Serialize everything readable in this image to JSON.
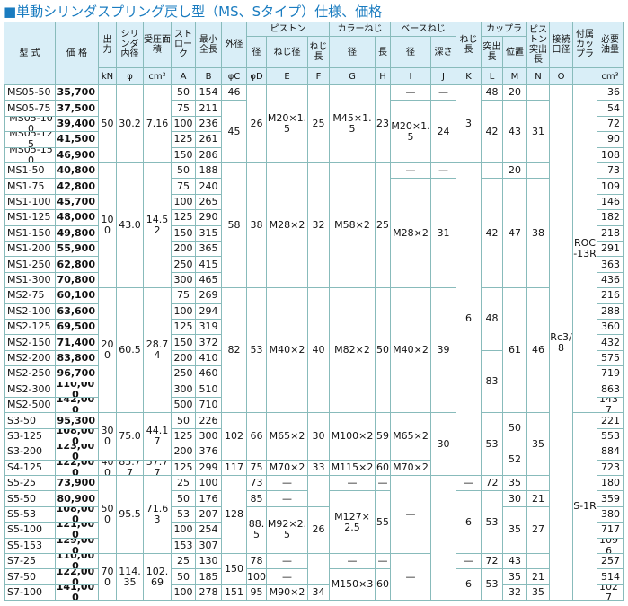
{
  "title": "■単動シリンダスプリング戻し型（MS、Sタイプ）仕様、価格",
  "table": {
    "header": {
      "model": "型 式",
      "price": "価 格",
      "output": "出力",
      "bore": "シリンダ内径",
      "area": "受圧面積",
      "stroke": "ストローク",
      "min_length": "最小全長",
      "outer_dia": "外径",
      "piston": "ピストン",
      "piston_dia": "径",
      "piston_thread": "ねじ径",
      "piston_thread_len": "ねじ長",
      "collar": "カラーねじ",
      "collar_dia": "径",
      "collar_len": "長",
      "base": "ベースねじ",
      "base_dia": "径",
      "base_depth": "深さ",
      "thread_len": "ねじ長",
      "coupler": "カップラ",
      "coupler_protrusion": "突出長",
      "coupler_position": "位置",
      "piston_protrusion": "ピストン突出長",
      "port": "接続口径",
      "acc_coupler": "付属カップラ",
      "oil": "必要油量"
    },
    "units": [
      "kN",
      "φ",
      "cm²",
      "A",
      "B",
      "φC",
      "φD",
      "E",
      "F",
      "G",
      "H",
      "I",
      "J",
      "K",
      "L",
      "M",
      "N",
      "O",
      "cm³"
    ],
    "columns": {
      "model": [
        "MS05-50",
        "MS05-75",
        "MS05-100",
        "MS05-125",
        "MS05-150",
        "MS1-50",
        "MS1-75",
        "MS1-100",
        "MS1-125",
        "MS1-150",
        "MS1-200",
        "MS1-250",
        "MS1-300",
        "MS2-75",
        "MS2-100",
        "MS2-125",
        "MS2-150",
        "MS2-200",
        "MS2-250",
        "MS2-300",
        "MS2-500",
        "S3-50",
        "S3-125",
        "S3-200",
        "S4-125",
        "S5-25",
        "S5-50",
        "S5-53",
        "S5-100",
        "S5-153",
        "S7-25",
        "S7-50",
        "S7-100"
      ],
      "price": [
        "35,700",
        "37,500",
        "39,400",
        "41,500",
        "46,900",
        "40,800",
        "42,800",
        "45,700",
        "48,000",
        "49,800",
        "55,900",
        "62,800",
        "70,800",
        "60,100",
        "63,600",
        "69,500",
        "71,400",
        "83,800",
        "96,700",
        "110,000",
        "142,000",
        "95,300",
        "108,000",
        "123,000",
        "122,000",
        "73,900",
        "80,900",
        "108,000",
        "121,000",
        "129,000",
        "110,000",
        "122,000",
        "141,000"
      ],
      "output": [
        "50",
        "100",
        "200",
        "300",
        "400",
        "500",
        "700"
      ],
      "bore": [
        "30.2",
        "43.0",
        "60.5",
        "75.0",
        "85.77",
        "95.5",
        "114.35"
      ],
      "area": [
        "7.16",
        "14.52",
        "28.74",
        "44.17",
        "57.77",
        "71.63",
        "102.69"
      ],
      "stroke": [
        "50",
        "75",
        "100",
        "125",
        "150",
        "50",
        "75",
        "100",
        "125",
        "150",
        "200",
        "250",
        "300",
        "75",
        "100",
        "125",
        "150",
        "200",
        "250",
        "300",
        "500",
        "50",
        "125",
        "200",
        "125",
        "25",
        "50",
        "53",
        "100",
        "153",
        "25",
        "50",
        "100"
      ],
      "min_length": [
        "154",
        "211",
        "236",
        "261",
        "286",
        "188",
        "240",
        "265",
        "290",
        "315",
        "365",
        "415",
        "465",
        "269",
        "294",
        "319",
        "372",
        "410",
        "460",
        "510",
        "710",
        "226",
        "300",
        "376",
        "299",
        "100",
        "176",
        "207",
        "254",
        "307",
        "130",
        "185",
        "278"
      ],
      "outer_dia": [
        "46",
        "45",
        "58",
        "82",
        "102",
        "117",
        "128",
        "150",
        "151"
      ],
      "piston_dia": [
        "26",
        "38",
        "53",
        "66",
        "75",
        "73",
        "85",
        "88.5",
        "78",
        "100",
        "95"
      ],
      "piston_thread": [
        "M20×1.5",
        "M28×2",
        "M40×2",
        "M65×2",
        "M70×2",
        "—",
        "—",
        "M92×2.5",
        "—",
        "—",
        "M90×2"
      ],
      "piston_thread_len": [
        "25",
        "32",
        "40",
        "30",
        "33",
        "26",
        "34"
      ],
      "collar_dia": [
        "M45×1.5",
        "M58×2",
        "M82×2",
        "M100×2",
        "M115×2",
        "—",
        "M127×2.5",
        "—",
        "M150×3"
      ],
      "collar_len": [
        "23",
        "25",
        "50",
        "59",
        "60",
        "—",
        "55",
        "—",
        "60"
      ],
      "base_dia": [
        "—",
        "M20×1.5",
        "—",
        "M28×2",
        "M40×2",
        "M65×2",
        "M70×2",
        "—",
        "—"
      ],
      "base_depth": [
        "—",
        "24",
        "—",
        "31",
        "39",
        "30"
      ],
      "thread_len": [
        "3",
        "6",
        "—",
        "6",
        "—",
        "6"
      ],
      "coupler_protrusion": [
        "48",
        "42",
        "42",
        "48",
        "83",
        "53",
        "72",
        "53",
        "72",
        "53"
      ],
      "coupler_position": [
        "20",
        "43",
        "20",
        "47",
        "61",
        "50",
        "52",
        "35",
        "30",
        "35",
        "43",
        "35",
        "32"
      ],
      "piston_protrusion": [
        "31",
        "38",
        "46",
        "35",
        "21",
        "27",
        "21",
        "35"
      ],
      "port": [
        "Rc3/8"
      ],
      "acc_coupler": [
        "ROC-13R",
        "S-1R"
      ],
      "oil": [
        "36",
        "54",
        "72",
        "90",
        "108",
        "73",
        "109",
        "146",
        "182",
        "218",
        "291",
        "363",
        "436",
        "216",
        "288",
        "360",
        "432",
        "575",
        "719",
        "863",
        "1437",
        "221",
        "553",
        "884",
        "723",
        "180",
        "359",
        "380",
        "717",
        "1096",
        "257",
        "514",
        "1027"
      ]
    }
  }
}
